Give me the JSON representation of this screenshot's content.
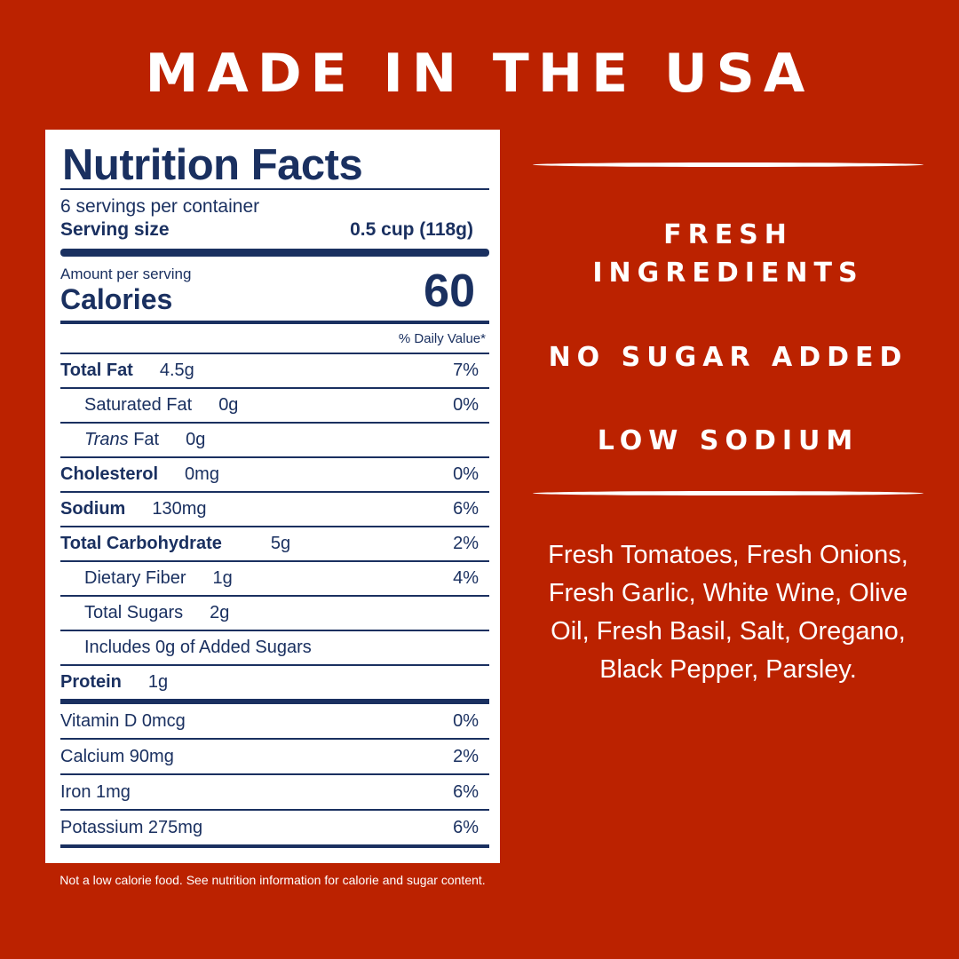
{
  "headline": "MADE IN THE USA",
  "label": {
    "title": "Nutrition Facts",
    "servings_per_container": "6 servings per container",
    "serving_size_label": "Serving size",
    "serving_size_value": "0.5 cup (118g)",
    "amount_per_serving": "Amount per serving",
    "calories_label": "Calories",
    "calories_value": "60",
    "dv_header": "% Daily Value*",
    "nutrients": [
      {
        "name": "Total Fat",
        "amount": "4.5g",
        "dv": "7%"
      },
      {
        "name": "Saturated Fat",
        "amount": "0g",
        "dv": "0%"
      },
      {
        "name": "Trans",
        "suffix": " Fat",
        "amount": "0g",
        "dv": ""
      },
      {
        "name": "Cholesterol",
        "amount": "0mg",
        "dv": "0%"
      },
      {
        "name": "Sodium",
        "amount": "130mg",
        "dv": "6%"
      },
      {
        "name": "Total Carbohydrate",
        "amount": "5g",
        "dv": "2%"
      },
      {
        "name": "Dietary Fiber",
        "amount": "1g",
        "dv": "4%"
      },
      {
        "name": "Total Sugars",
        "amount": "2g",
        "dv": ""
      },
      {
        "name": "Includes 0g of Added Sugars",
        "amount": "",
        "dv": ""
      },
      {
        "name": "Protein",
        "amount": "1g",
        "dv": ""
      }
    ],
    "vitamins": [
      {
        "name": "Vitamin D 0mcg",
        "dv": "0%"
      },
      {
        "name": "Calcium 90mg",
        "dv": "2%"
      },
      {
        "name": "Iron 1mg",
        "dv": "6%"
      },
      {
        "name": "Potassium 275mg",
        "dv": "6%"
      }
    ]
  },
  "footnote": "Not a low calorie food. See nutrition information for calorie and sugar content.",
  "benefits": {
    "fresh": "FRESH",
    "ingredients": "INGREDIENTS",
    "no_sugar": "NO SUGAR ADDED",
    "low_sodium": "LOW SODIUM"
  },
  "ingredients_text": "Fresh Tomatoes, Fresh Onions, Fresh Garlic, White Wine, Olive Oil, Fresh Basil, Salt, Oregano, Black Pepper, Parsley."
}
